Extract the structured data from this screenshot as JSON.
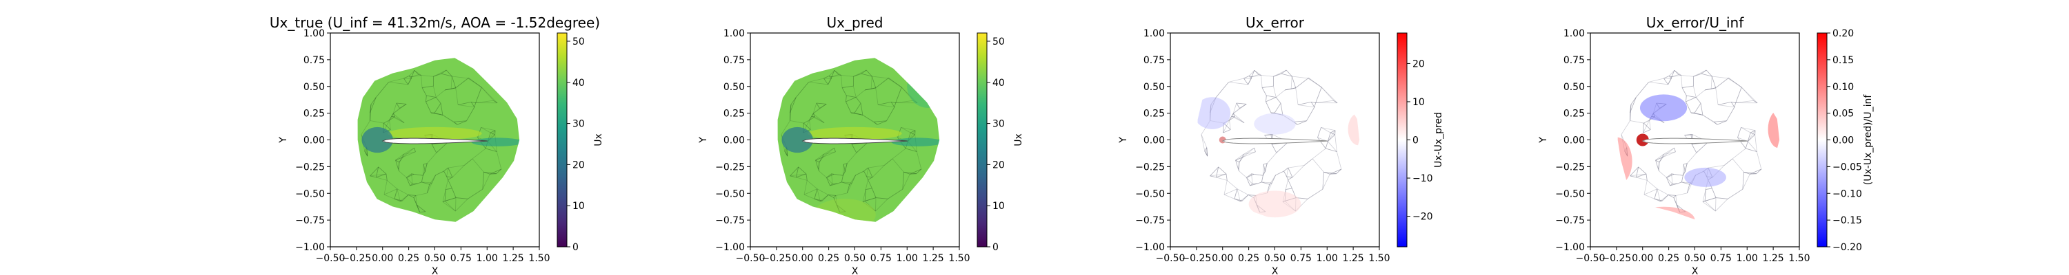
{
  "chart_data": [
    {
      "type": "heatmap",
      "title": "Ux_true (U_inf = 41.32m/s, AOA = -1.52degree)",
      "xlabel": "X",
      "ylabel": "Y",
      "xlim": [
        -0.5,
        1.5
      ],
      "ylim": [
        -1.0,
        1.0
      ],
      "xticks": [
        "−0.50",
        "−0.25",
        "0.00",
        "0.25",
        "0.50",
        "0.75",
        "1.00",
        "1.25",
        "1.50"
      ],
      "yticks": [
        "−1.00",
        "−0.75",
        "−0.50",
        "−0.25",
        "0.00",
        "0.25",
        "0.50",
        "0.75",
        "1.00"
      ],
      "colorbar": {
        "label": "Ux",
        "range": [
          0,
          52
        ],
        "ticks": [
          "0",
          "10",
          "20",
          "30",
          "40",
          "50"
        ],
        "cmap": "viridis"
      },
      "field_value": 41.3
    },
    {
      "type": "heatmap",
      "title": "Ux_pred",
      "xlabel": "X",
      "ylabel": "Y",
      "xlim": [
        -0.5,
        1.5
      ],
      "ylim": [
        -1.0,
        1.0
      ],
      "xticks": [
        "−0.50",
        "−0.25",
        "0.00",
        "0.25",
        "0.50",
        "0.75",
        "1.00",
        "1.25",
        "1.50"
      ],
      "yticks": [
        "−1.00",
        "−0.75",
        "−0.50",
        "−0.25",
        "0.00",
        "0.25",
        "0.50",
        "0.75",
        "1.00"
      ],
      "colorbar": {
        "label": "Ux",
        "range": [
          0,
          52
        ],
        "ticks": [
          "0",
          "10",
          "20",
          "30",
          "40",
          "50"
        ],
        "cmap": "viridis"
      },
      "field_value": 41.3
    },
    {
      "type": "heatmap",
      "title": "Ux_error",
      "xlabel": "X",
      "ylabel": "Y",
      "xlim": [
        -0.5,
        1.5
      ],
      "ylim": [
        -1.0,
        1.0
      ],
      "xticks": [
        "−0.50",
        "−0.25",
        "0.00",
        "0.25",
        "0.50",
        "0.75",
        "1.00",
        "1.25",
        "1.50"
      ],
      "yticks": [
        "−1.00",
        "−0.75",
        "−0.50",
        "−0.25",
        "0.00",
        "0.25",
        "0.50",
        "0.75",
        "1.00"
      ],
      "colorbar": {
        "label": "Ux-Ux_pred",
        "range": [
          -28,
          28
        ],
        "ticks": [
          "−20",
          "−10",
          "0",
          "10",
          "20"
        ],
        "cmap": "bwr"
      },
      "field_value": 0
    },
    {
      "type": "heatmap",
      "title": "Ux_error/U_inf",
      "xlabel": "X",
      "ylabel": "Y",
      "xlim": [
        -0.5,
        1.5
      ],
      "ylim": [
        -1.0,
        1.0
      ],
      "xticks": [
        "−0.50",
        "−0.25",
        "0.00",
        "0.25",
        "0.50",
        "0.75",
        "1.00",
        "1.25",
        "1.50"
      ],
      "yticks": [
        "−1.00",
        "−0.75",
        "−0.50",
        "−0.25",
        "0.00",
        "0.25",
        "0.50",
        "0.75",
        "1.00"
      ],
      "colorbar": {
        "label": "(Ux-Ux_pred)/U_inf",
        "range": [
          -0.2,
          0.2
        ],
        "ticks": [
          "−0.20",
          "−0.15",
          "−0.10",
          "−0.05",
          "0.00",
          "0.05",
          "0.10",
          "0.15",
          "0.20"
        ],
        "cmap": "bwr"
      },
      "field_value": 0
    }
  ]
}
